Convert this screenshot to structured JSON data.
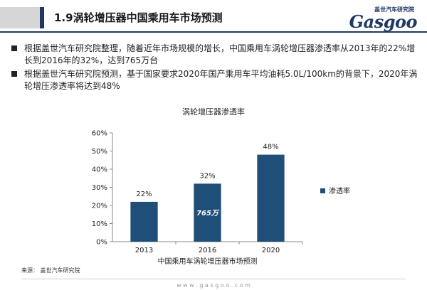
{
  "header": {
    "title": "1.9涡轮增压器中国乘用车市场预测",
    "logo_top": "盖世汽车研究院",
    "logo_main": "Gasgoo"
  },
  "bullets": [
    "根据盖世汽车研究院整理，随着近年市场规模的增长，中国乘用车涡轮增压器渗透率从2013年的22%增长到2016年的32%，达到765万台",
    "根据盖世汽车研究院预测，基于国家要求2020年国产乘用车平均油耗5.0L/100km的背景下，2020年涡轮增压渗透率将达到48%"
  ],
  "chart_data": {
    "type": "bar",
    "title": "涡轮增压器渗透率",
    "categories": [
      "2013",
      "2016",
      "2020"
    ],
    "series": [
      {
        "name": "渗透率",
        "values": [
          22,
          32,
          48
        ]
      }
    ],
    "data_labels": [
      "22%",
      "32%",
      "48%"
    ],
    "bar_annotation": {
      "category": "2016",
      "text": "765万"
    },
    "xlabel": "中国乘用车涡轮增压器市场预测",
    "ylabel": "",
    "ylim": [
      0,
      60
    ],
    "yticks": [
      "0%",
      "10%",
      "20%",
      "30%",
      "40%",
      "50%",
      "60%"
    ],
    "legend": "right",
    "bar_color": "#1f4e79"
  },
  "source": "来源：   盖世汽车研究院",
  "footer_url": "w w w . g a s g o o . c o m"
}
